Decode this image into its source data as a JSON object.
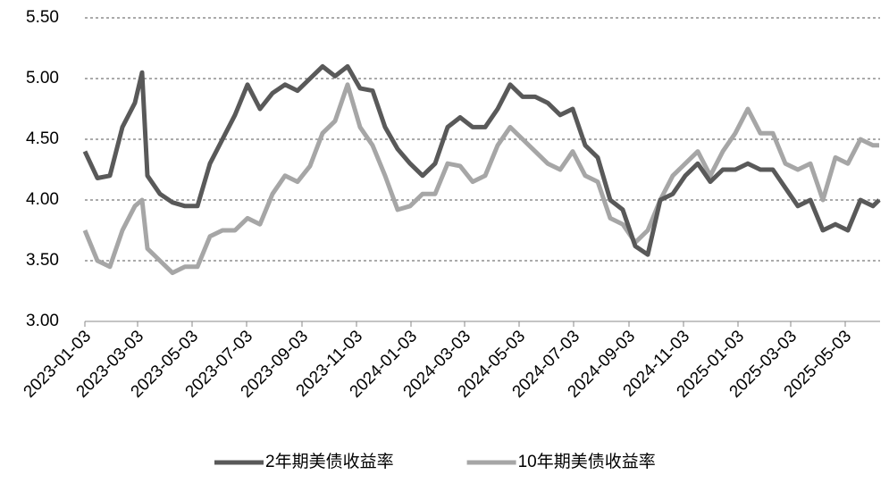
{
  "chart_data": {
    "type": "line",
    "x": [
      "2023-01-03",
      "2023-01-17",
      "2023-01-31",
      "2023-02-14",
      "2023-02-28",
      "2023-03-08",
      "2023-03-14",
      "2023-03-28",
      "2023-04-11",
      "2023-04-25",
      "2023-05-09",
      "2023-05-23",
      "2023-06-06",
      "2023-06-20",
      "2023-07-04",
      "2023-07-18",
      "2023-08-01",
      "2023-08-15",
      "2023-08-29",
      "2023-09-12",
      "2023-09-26",
      "2023-10-10",
      "2023-10-24",
      "2023-11-07",
      "2023-11-21",
      "2023-12-05",
      "2023-12-19",
      "2024-01-02",
      "2024-01-16",
      "2024-01-30",
      "2024-02-13",
      "2024-02-27",
      "2024-03-12",
      "2024-03-26",
      "2024-04-09",
      "2024-04-23",
      "2024-05-07",
      "2024-05-21",
      "2024-06-04",
      "2024-06-18",
      "2024-07-02",
      "2024-07-16",
      "2024-07-30",
      "2024-08-13",
      "2024-08-27",
      "2024-09-10",
      "2024-09-24",
      "2024-10-08",
      "2024-10-22",
      "2024-11-05",
      "2024-11-19",
      "2024-12-03",
      "2024-12-17",
      "2024-12-31",
      "2025-01-14",
      "2025-01-28",
      "2025-02-11",
      "2025-02-25",
      "2025-03-11",
      "2025-03-25",
      "2025-04-08",
      "2025-04-22",
      "2025-05-06",
      "2025-05-20",
      "2025-06-03",
      "2025-06-10"
    ],
    "series": [
      {
        "name": "2年期美债收益率",
        "color": "#595959",
        "values": [
          4.4,
          4.18,
          4.2,
          4.6,
          4.8,
          5.05,
          4.2,
          4.05,
          3.98,
          3.95,
          3.95,
          4.3,
          4.5,
          4.7,
          4.95,
          4.75,
          4.88,
          4.95,
          4.9,
          5.0,
          5.1,
          5.02,
          5.1,
          4.92,
          4.9,
          4.6,
          4.42,
          4.3,
          4.2,
          4.3,
          4.6,
          4.68,
          4.6,
          4.6,
          4.75,
          4.95,
          4.85,
          4.85,
          4.8,
          4.7,
          4.75,
          4.45,
          4.35,
          4.0,
          3.92,
          3.62,
          3.55,
          4.0,
          4.05,
          4.2,
          4.3,
          4.15,
          4.25,
          4.25,
          4.3,
          4.25,
          4.25,
          4.1,
          3.95,
          4.0,
          3.75,
          3.8,
          3.75,
          4.0,
          3.95,
          4.0
        ]
      },
      {
        "name": "10年期美债收益率",
        "color": "#a6a6a6",
        "values": [
          3.75,
          3.5,
          3.45,
          3.75,
          3.95,
          4.0,
          3.6,
          3.5,
          3.4,
          3.45,
          3.45,
          3.7,
          3.75,
          3.75,
          3.85,
          3.8,
          4.05,
          4.2,
          4.15,
          4.28,
          4.55,
          4.65,
          4.95,
          4.6,
          4.45,
          4.2,
          3.92,
          3.95,
          4.05,
          4.05,
          4.3,
          4.28,
          4.15,
          4.2,
          4.45,
          4.6,
          4.5,
          4.4,
          4.3,
          4.25,
          4.4,
          4.2,
          4.15,
          3.85,
          3.8,
          3.65,
          3.75,
          4.0,
          4.2,
          4.3,
          4.4,
          4.2,
          4.4,
          4.55,
          4.75,
          4.55,
          4.55,
          4.3,
          4.25,
          4.3,
          4.0,
          4.35,
          4.3,
          4.5,
          4.45,
          4.45
        ]
      }
    ],
    "xlim": [
      "2023-01-03",
      "2025-06-11"
    ],
    "xticks": [
      "2023-01-03",
      "2023-03-03",
      "2023-05-03",
      "2023-07-03",
      "2023-09-03",
      "2023-11-03",
      "2024-01-03",
      "2024-03-03",
      "2024-05-03",
      "2024-07-03",
      "2024-09-03",
      "2024-11-03",
      "2025-01-03",
      "2025-03-03",
      "2025-05-03"
    ],
    "ylim": [
      3,
      5.5
    ],
    "yticks": [
      {
        "value": 3,
        "label": "3.00"
      },
      {
        "value": 3.5,
        "label": "3.50"
      },
      {
        "value": 4,
        "label": "4.00"
      },
      {
        "value": 4.5,
        "label": "4.50"
      },
      {
        "value": 5,
        "label": "5.00"
      },
      {
        "value": 5.5,
        "label": "5.50"
      }
    ],
    "grid": true,
    "legend": "bottom"
  }
}
